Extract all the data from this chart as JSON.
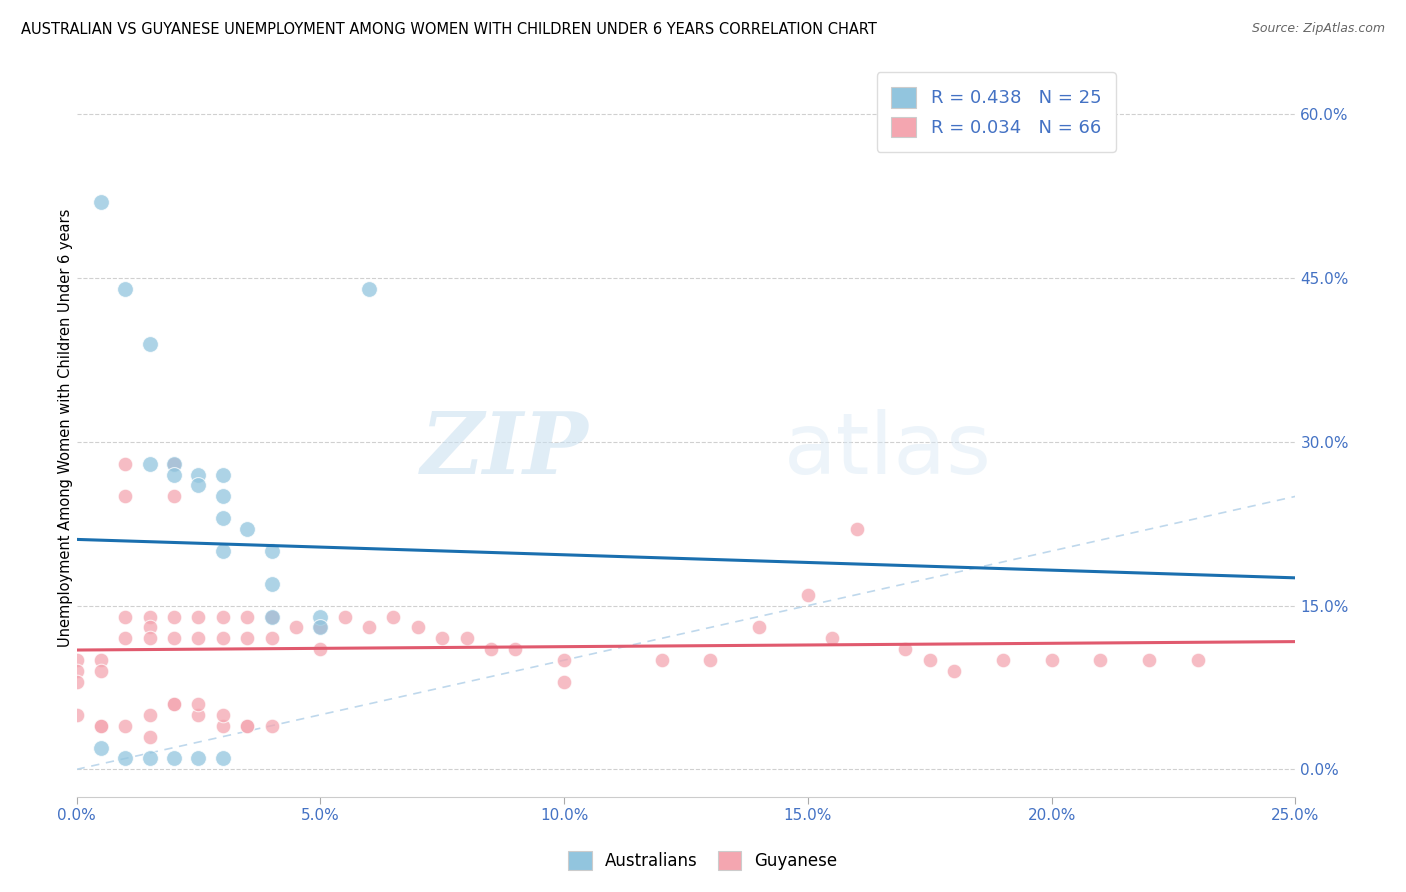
{
  "title": "AUSTRALIAN VS GUYANESE UNEMPLOYMENT AMONG WOMEN WITH CHILDREN UNDER 6 YEARS CORRELATION CHART",
  "source": "Source: ZipAtlas.com",
  "ylabel": "Unemployment Among Women with Children Under 6 years",
  "xlim": [
    0.0,
    0.25
  ],
  "ylim": [
    -0.025,
    0.65
  ],
  "xticks": [
    0.0,
    0.05,
    0.1,
    0.15,
    0.2,
    0.25
  ],
  "yticks_right": [
    0.0,
    0.15,
    0.3,
    0.45,
    0.6
  ],
  "legend_r1": "R = 0.438   N = 25",
  "legend_r2": "R = 0.034   N = 66",
  "watermark_zip": "ZIP",
  "watermark_atlas": "atlas",
  "blue_color": "#92c5de",
  "pink_color": "#f4a6b0",
  "trend_blue": "#1a6faf",
  "trend_pink": "#e05a6e",
  "diag_color": "#b8d4ea",
  "aus_x": [
    0.005,
    0.01,
    0.01,
    0.015,
    0.015,
    0.02,
    0.02,
    0.02,
    0.025,
    0.025,
    0.025,
    0.03,
    0.03,
    0.03,
    0.03,
    0.03,
    0.035,
    0.04,
    0.04,
    0.04,
    0.05,
    0.05,
    0.06,
    0.005,
    0.015
  ],
  "aus_y": [
    0.52,
    0.44,
    0.01,
    0.39,
    0.01,
    0.28,
    0.27,
    0.01,
    0.27,
    0.26,
    0.01,
    0.27,
    0.25,
    0.23,
    0.2,
    0.01,
    0.22,
    0.2,
    0.17,
    0.14,
    0.14,
    0.13,
    0.44,
    0.02,
    0.28
  ],
  "guy_x": [
    0.0,
    0.0,
    0.0,
    0.005,
    0.005,
    0.005,
    0.01,
    0.01,
    0.01,
    0.01,
    0.015,
    0.015,
    0.015,
    0.02,
    0.02,
    0.02,
    0.02,
    0.025,
    0.025,
    0.03,
    0.03,
    0.035,
    0.035,
    0.04,
    0.04,
    0.045,
    0.05,
    0.05,
    0.055,
    0.06,
    0.065,
    0.07,
    0.075,
    0.08,
    0.085,
    0.09,
    0.1,
    0.1,
    0.12,
    0.13,
    0.14,
    0.15,
    0.155,
    0.16,
    0.17,
    0.175,
    0.18,
    0.19,
    0.2,
    0.21,
    0.22,
    0.23,
    0.0,
    0.005,
    0.01,
    0.015,
    0.02,
    0.025,
    0.03,
    0.035,
    0.04,
    0.015,
    0.02,
    0.025,
    0.03,
    0.035
  ],
  "guy_y": [
    0.1,
    0.09,
    0.08,
    0.1,
    0.09,
    0.04,
    0.28,
    0.25,
    0.14,
    0.12,
    0.14,
    0.13,
    0.12,
    0.28,
    0.25,
    0.14,
    0.12,
    0.14,
    0.12,
    0.14,
    0.12,
    0.14,
    0.12,
    0.14,
    0.12,
    0.13,
    0.13,
    0.11,
    0.14,
    0.13,
    0.14,
    0.13,
    0.12,
    0.12,
    0.11,
    0.11,
    0.1,
    0.08,
    0.1,
    0.1,
    0.13,
    0.16,
    0.12,
    0.22,
    0.11,
    0.1,
    0.09,
    0.1,
    0.1,
    0.1,
    0.1,
    0.1,
    0.05,
    0.04,
    0.04,
    0.03,
    0.06,
    0.05,
    0.04,
    0.04,
    0.04,
    0.05,
    0.06,
    0.06,
    0.05,
    0.04
  ]
}
